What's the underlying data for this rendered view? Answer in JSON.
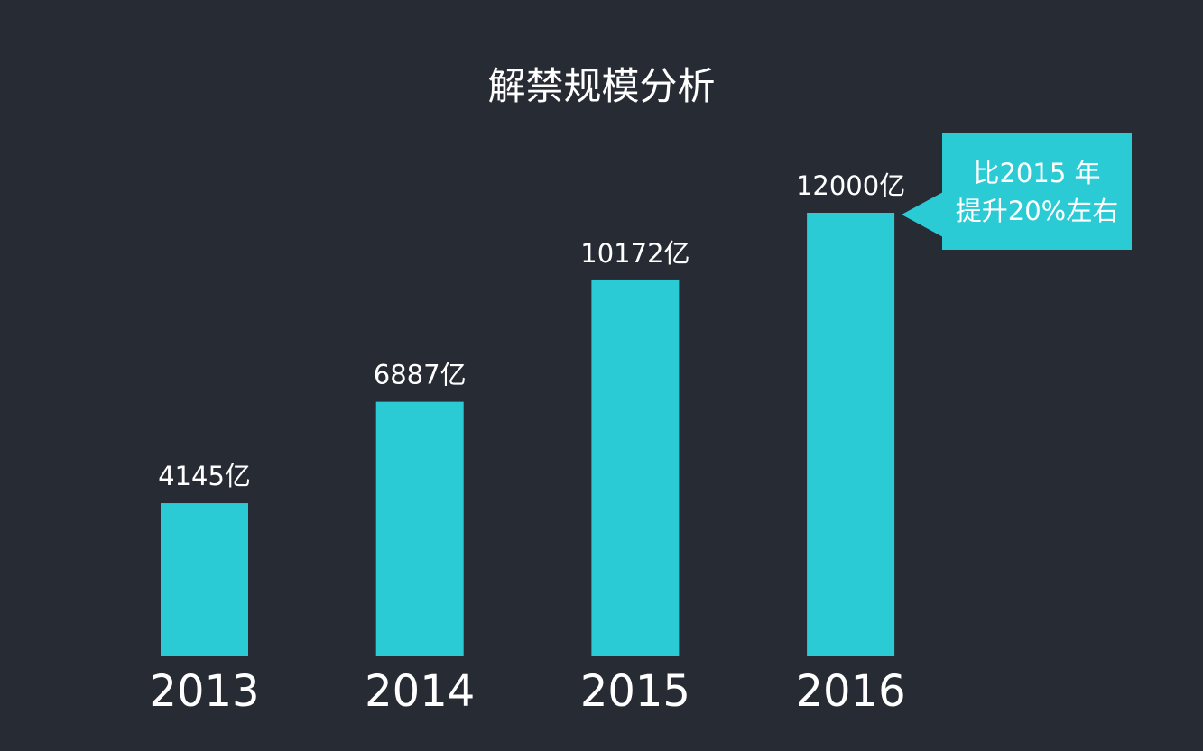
{
  "chart_data": {
    "type": "bar",
    "title": "解禁规模分析",
    "categories": [
      "2013",
      "2014",
      "2015",
      "2016"
    ],
    "values": [
      4145,
      6887,
      10172,
      12000
    ],
    "value_labels": [
      "4145亿",
      "6887亿",
      "10172亿",
      "12000亿"
    ],
    "unit": "亿",
    "ylim": [
      0,
      12000
    ],
    "grid": false,
    "legend": "none",
    "colors": {
      "background": "#272b33",
      "bar": "#2bcbd5",
      "text": "#ffffff"
    },
    "annotation": {
      "target": "2016",
      "lines": [
        "比2015 年",
        "提升20%左右"
      ]
    }
  }
}
